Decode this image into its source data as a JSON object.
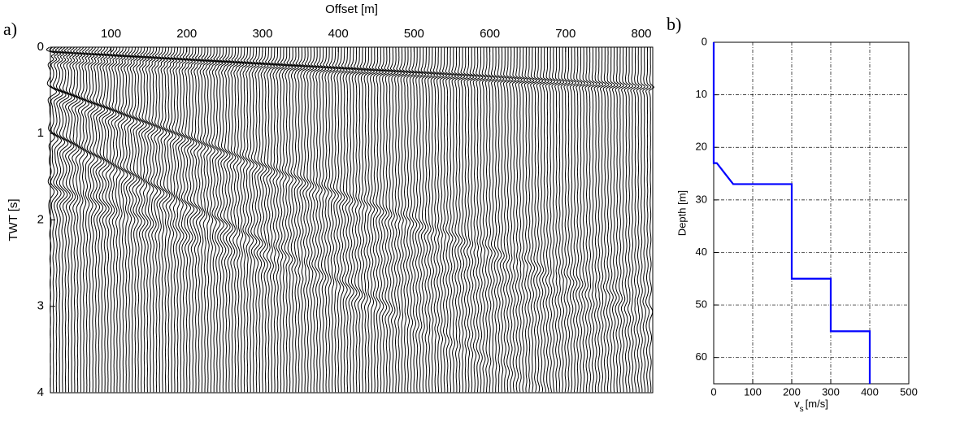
{
  "chart_data": [
    {
      "type": "seismogram",
      "panel_label": "a)",
      "xlabel": "Offset [m]",
      "ylabel": "TWT [s]",
      "xlim": [
        20,
        815
      ],
      "xticks": [
        100,
        200,
        300,
        400,
        500,
        600,
        700,
        800
      ],
      "ylim": [
        0,
        4
      ],
      "yticks": [
        0,
        1,
        2,
        3,
        4
      ],
      "y_inverted": true,
      "x_axis_top": true
    },
    {
      "type": "line",
      "panel_label": "b)",
      "xlabel": {
        "main": "v",
        "sub": "s",
        "unit": "[m/s]"
      },
      "ylabel": "Depth [m]",
      "xlim": [
        0,
        500
      ],
      "xticks": [
        0,
        100,
        200,
        300,
        400,
        500
      ],
      "ylim": [
        0,
        65
      ],
      "yticks": [
        0,
        10,
        20,
        30,
        40,
        50,
        60
      ],
      "y_inverted": true,
      "grid": true,
      "series": [
        {
          "color": "#0000ff",
          "x": [
            0,
            0,
            8,
            50,
            200,
            200,
            300,
            300,
            400,
            400
          ],
          "values": [
            0,
            23,
            23,
            27,
            27,
            45,
            45,
            55,
            55,
            65
          ]
        }
      ]
    }
  ]
}
